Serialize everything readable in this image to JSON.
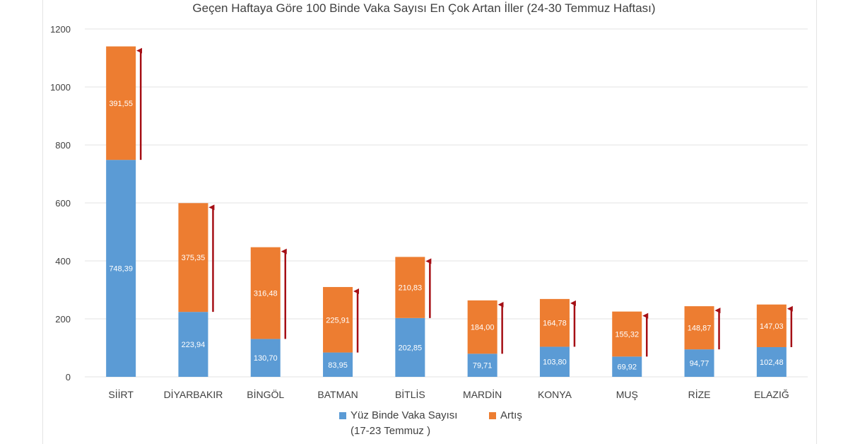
{
  "chart_data": {
    "type": "bar",
    "stacked": true,
    "title": "Geçen Haftaya Göre 100 Binde Vaka Sayısı En Çok Artan İller (24-30 Temmuz Haftası)",
    "categories": [
      "SİİRT",
      "DİYARBAKIR",
      "BİNGÖL",
      "BATMAN",
      "BİTLİS",
      "MARDİN",
      "KONYA",
      "MUŞ",
      "RİZE",
      "ELAZIĞ"
    ],
    "series": [
      {
        "name": "Yüz Binde Vaka Sayısı (17-23 Temmuz )",
        "color": "#5b9bd5",
        "values": [
          748.39,
          223.94,
          130.7,
          83.95,
          202.85,
          79.71,
          103.8,
          69.92,
          94.77,
          102.48
        ],
        "labels": [
          "748,39",
          "223,94",
          "130,70",
          "83,95",
          "202,85",
          "79,71",
          "103,80",
          "69,92",
          "94,77",
          "102,48"
        ]
      },
      {
        "name": "Artış",
        "color": "#ed7d31",
        "values": [
          391.55,
          375.35,
          316.48,
          225.91,
          210.83,
          184.0,
          164.78,
          155.32,
          148.87,
          147.03
        ],
        "labels": [
          "391,55",
          "375,35",
          "316,48",
          "225,91",
          "210,83",
          "184,00",
          "164,78",
          "155,32",
          "148,87",
          "147,03"
        ]
      }
    ],
    "ylim": [
      0,
      1200
    ],
    "yticks": [
      0,
      200,
      400,
      600,
      800,
      1000,
      1200
    ],
    "grid": true,
    "legend_position": "bottom",
    "arrow_color": "#a50f15"
  },
  "legend": {
    "series1_line1": "Yüz Binde Vaka Sayısı",
    "series1_line2": "(17-23 Temmuz )",
    "series2": "Artış"
  }
}
